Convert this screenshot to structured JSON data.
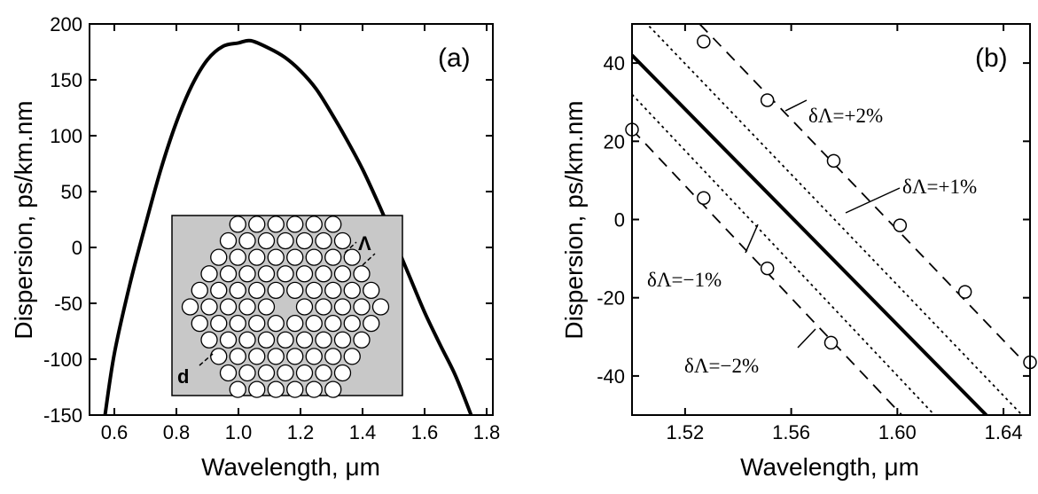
{
  "chart_data": [
    {
      "type": "line",
      "panel_label": "(a)",
      "xlabel": "Wavelength, μm",
      "ylabel": "Dispersion, ps/km.nm",
      "xlim": [
        0.52,
        1.82
      ],
      "ylim": [
        -150,
        200
      ],
      "xticks": [
        "0.6",
        "0.8",
        "1.0",
        "1.2",
        "1.4",
        "1.6",
        "1.8"
      ],
      "xtick_values": [
        0.6,
        0.8,
        1.0,
        1.2,
        1.4,
        1.6,
        1.8
      ],
      "yticks": [
        "-150",
        "-100",
        "-50",
        "0",
        "50",
        "100",
        "150",
        "200"
      ],
      "ytick_values": [
        -150,
        -100,
        -50,
        0,
        50,
        100,
        150,
        200
      ],
      "series": [
        {
          "style": "solid-thick",
          "x": [
            0.57,
            0.6,
            0.65,
            0.7,
            0.75,
            0.8,
            0.85,
            0.9,
            0.95,
            1.0,
            1.04,
            1.1,
            1.15,
            1.2,
            1.25,
            1.3,
            1.35,
            1.4,
            1.45,
            1.5,
            1.55,
            1.6,
            1.65,
            1.7,
            1.75
          ],
          "y": [
            -150,
            -95,
            -33,
            20,
            70,
            112,
            145,
            168,
            180,
            183,
            185,
            178,
            170,
            158,
            142,
            120,
            96,
            70,
            40,
            8,
            -25,
            -58,
            -87,
            -115,
            -150
          ]
        }
      ],
      "inset": {
        "description_labels": [
          "Λ",
          "d"
        ],
        "background": "#c8c8c8"
      }
    },
    {
      "type": "line",
      "panel_label": "(b)",
      "xlabel": "Wavelength, μm",
      "ylabel": "Dispersion, ps/km.nm",
      "xlim": [
        1.5,
        1.65
      ],
      "ylim": [
        -50,
        50
      ],
      "xticks": [
        "1.52",
        "1.56",
        "1.60",
        "1.64"
      ],
      "xtick_values": [
        1.52,
        1.56,
        1.6,
        1.64
      ],
      "yticks": [
        "-40",
        "-20",
        "0",
        "20",
        "40"
      ],
      "ytick_values": [
        -40,
        -20,
        0,
        20,
        40
      ],
      "series": [
        {
          "style": "solid-thick",
          "x": [
            1.5,
            1.6335
          ],
          "y": [
            42,
            -50
          ]
        },
        {
          "style": "dotted",
          "x": [
            1.5,
            1.647
          ],
          "y": [
            54,
            -50
          ]
        },
        {
          "style": "dotted",
          "x": [
            1.5,
            1.614
          ],
          "y": [
            32,
            -50
          ]
        },
        {
          "style": "dashed-circles",
          "x": [
            1.5,
            1.667
          ],
          "y": [
            68,
            -50
          ],
          "marker_x": [
            1.527,
            1.551,
            1.576,
            1.601,
            1.6255,
            1.65
          ],
          "marker_y": [
            45.5,
            30.5,
            15,
            -1.5,
            -18.5,
            -36.5
          ]
        },
        {
          "style": "dashed-circles",
          "x": [
            1.5,
            1.6017
          ],
          "y": [
            23,
            -50
          ],
          "marker_x": [
            1.5,
            1.527,
            1.551,
            1.575
          ],
          "marker_y": [
            23,
            5.5,
            -12.5,
            -31.5
          ]
        }
      ],
      "annotations": [
        {
          "text": "δΛ=+2%",
          "target": "dashed-upper"
        },
        {
          "text": "δΛ=+1%",
          "target": "dotted-upper"
        },
        {
          "text": "δΛ=−1%",
          "target": "dotted-lower"
        },
        {
          "text": "δΛ=−2%",
          "target": "dashed-lower"
        }
      ]
    }
  ]
}
